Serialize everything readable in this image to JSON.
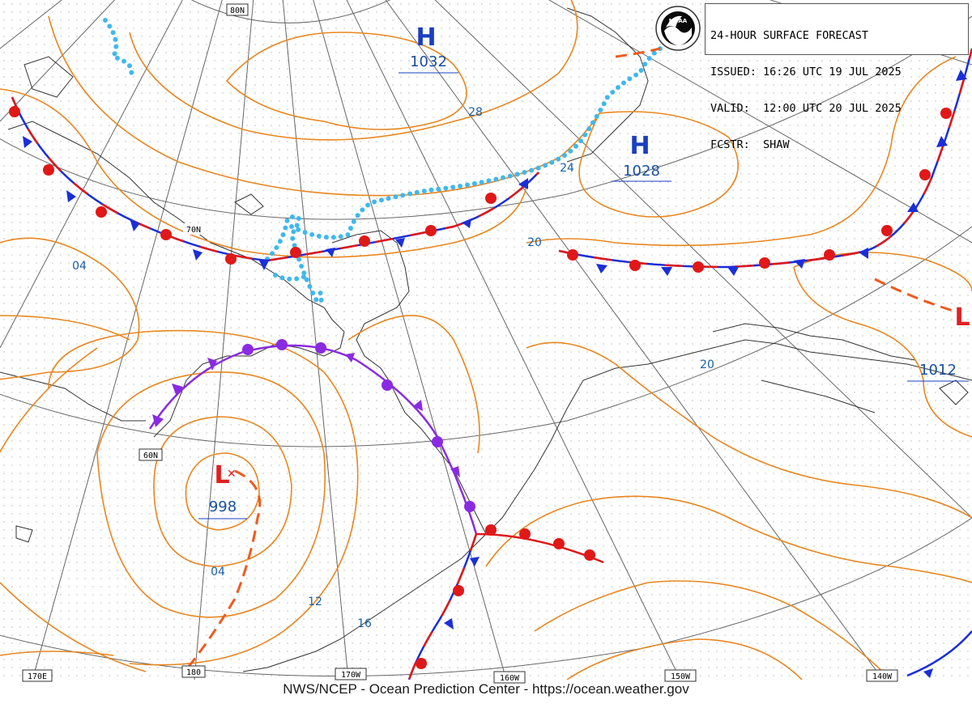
{
  "product": {
    "title": "24-HOUR SURFACE FORECAST",
    "issued_label": "ISSUED:",
    "issued": "16:26 UTC 19 JUL 2025",
    "valid_label": "VALID:",
    "valid": "12:00 UTC 20 JUL 2025",
    "forecaster_label": "FCSTR:",
    "forecaster": "SHAW"
  },
  "logo": {
    "icon": "noaa-logo",
    "text": "NOAA"
  },
  "footer": {
    "credit": "NWS/NCEP - Ocean Prediction Center - https://ocean.weather.gov"
  },
  "pressure_centers": [
    {
      "type": "H",
      "value": "1032",
      "color": "#1a3fc0"
    },
    {
      "type": "H",
      "value": "1028",
      "color": "#1a3fc0"
    },
    {
      "type": "L",
      "value": "998",
      "color": "#e02020"
    },
    {
      "type": "L",
      "value": "1012",
      "color": "#e02020"
    }
  ],
  "isobar_labels": [
    "28",
    "24",
    "20",
    "04",
    "20",
    "04",
    "12",
    "16"
  ],
  "latitude_labels": [
    "80N",
    "70N",
    "60N"
  ],
  "longitude_labels": [
    "170E",
    "180",
    "170W",
    "160W",
    "150W",
    "140W"
  ],
  "colors": {
    "isobar": "#e8861e",
    "warm_front": "#e01818",
    "cold_front": "#1a2fd8",
    "occluded_front": "#8a2be2",
    "trough": "#f05a1e",
    "ice_edge": "#40b8ee",
    "grid": "#555555",
    "coast": "#333333"
  }
}
